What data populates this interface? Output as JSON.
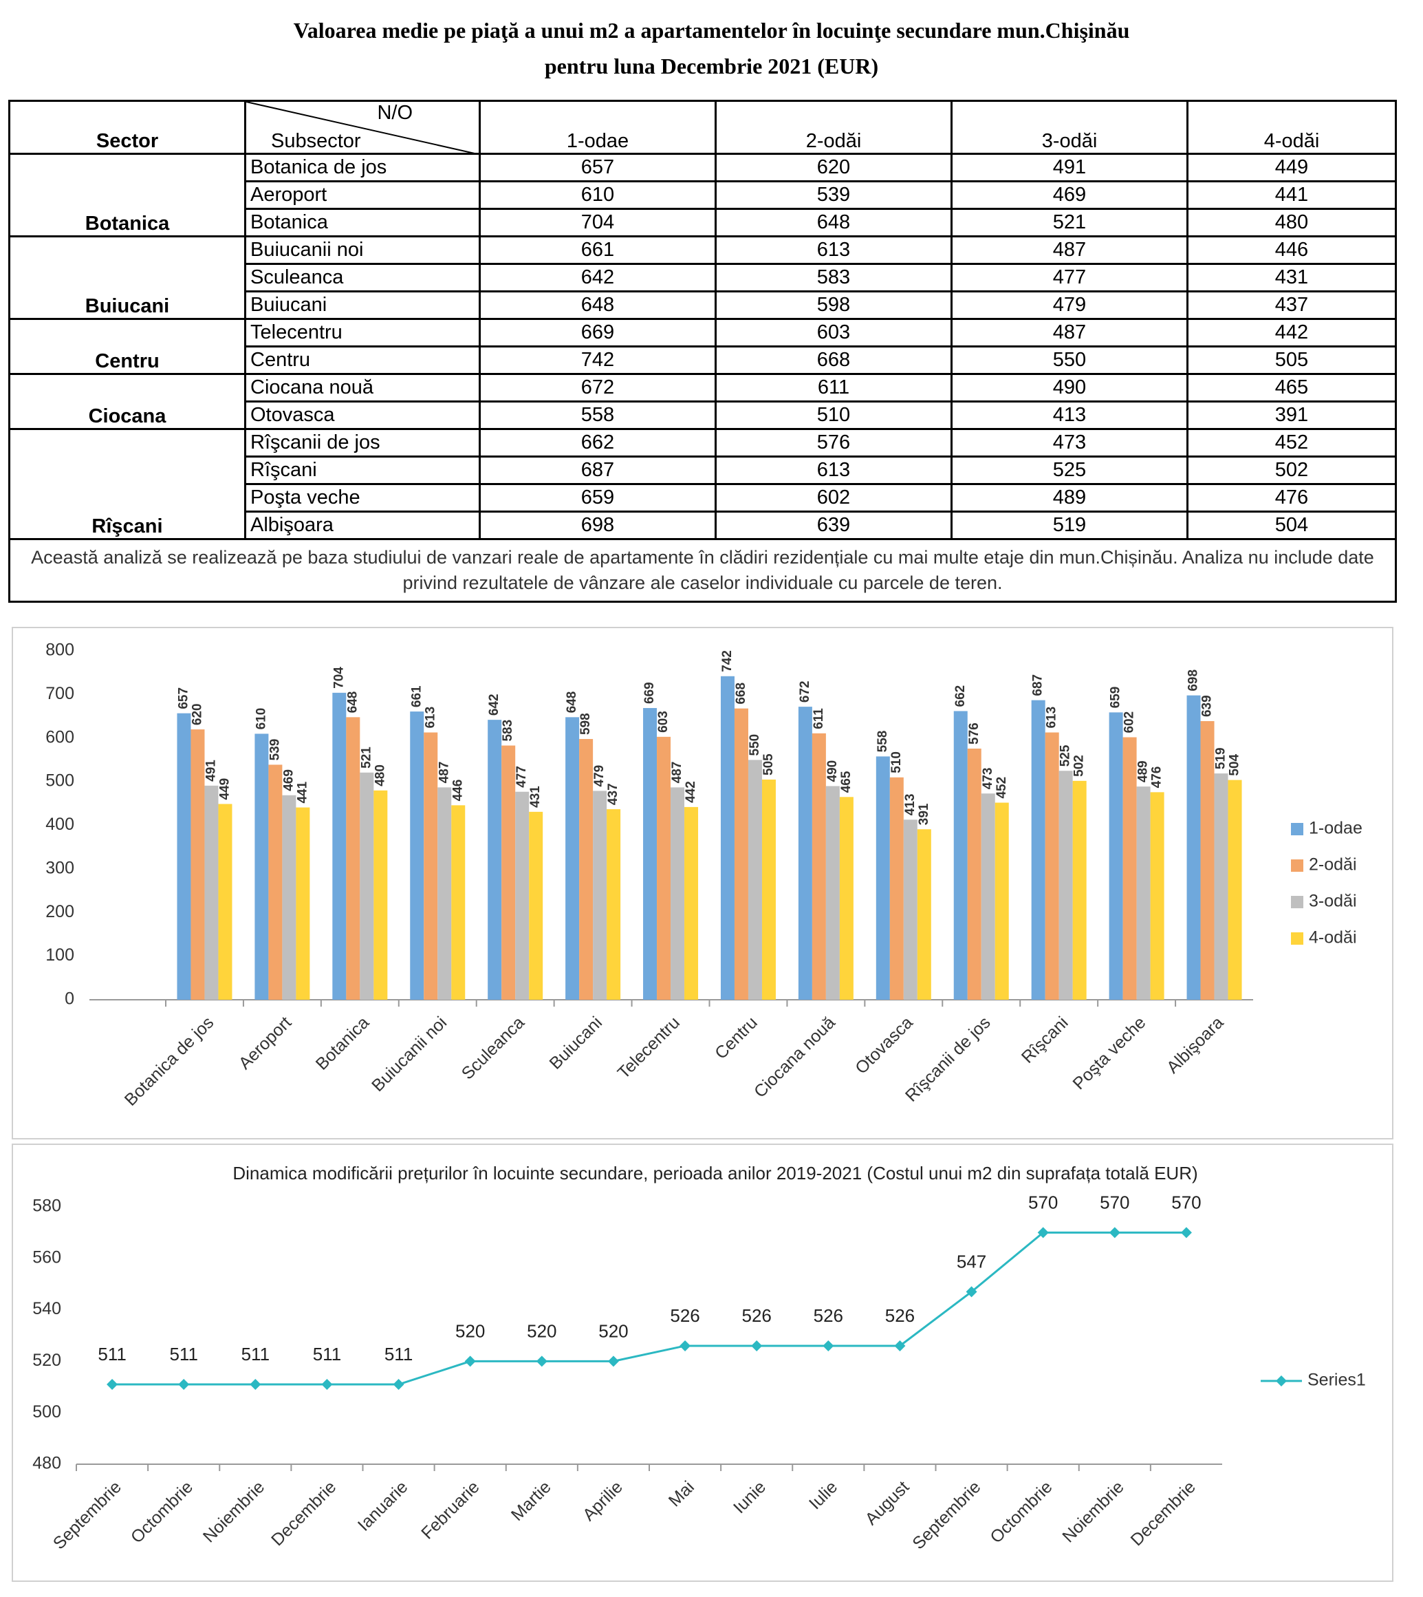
{
  "header": {
    "title_lines": [
      "Valoarea medie pe piaţă a unui m2 a apartamentelor în locuinţe secundare  mun.Chişinău",
      "pentru luna Decembrie 2021 (EUR)"
    ]
  },
  "table": {
    "header": {
      "sector": "Sector",
      "no": "N/O",
      "subsector": "Subsector",
      "columns": [
        "1-odae",
        "2-odăi",
        "3-odăi",
        "4-odăi"
      ]
    },
    "groups": [
      {
        "sector": "Botanica",
        "rows": [
          {
            "subsector": "Botanica de jos",
            "values": [
              657,
              620,
              491,
              449
            ]
          },
          {
            "subsector": "Aeroport",
            "values": [
              610,
              539,
              469,
              441
            ]
          },
          {
            "subsector": "Botanica",
            "values": [
              704,
              648,
              521,
              480
            ]
          }
        ]
      },
      {
        "sector": "Buiucani",
        "rows": [
          {
            "subsector": "Buiucanii noi",
            "values": [
              661,
              613,
              487,
              446
            ]
          },
          {
            "subsector": "Sculeanca",
            "values": [
              642,
              583,
              477,
              431
            ]
          },
          {
            "subsector": "Buiucani",
            "values": [
              648,
              598,
              479,
              437
            ]
          }
        ]
      },
      {
        "sector": "Centru",
        "rows": [
          {
            "subsector": "Telecentru",
            "values": [
              669,
              603,
              487,
              442
            ]
          },
          {
            "subsector": "Centru",
            "values": [
              742,
              668,
              550,
              505
            ]
          }
        ]
      },
      {
        "sector": "Ciocana",
        "rows": [
          {
            "subsector": "Ciocana nouă",
            "values": [
              672,
              611,
              490,
              465
            ]
          },
          {
            "subsector": "Otovasca",
            "values": [
              558,
              510,
              413,
              391
            ]
          }
        ]
      },
      {
        "sector": "Rîşcani",
        "rows": [
          {
            "subsector": "Rîşcanii de jos",
            "values": [
              662,
              576,
              473,
              452
            ]
          },
          {
            "subsector": "Rîşcani",
            "values": [
              687,
              613,
              525,
              502
            ]
          },
          {
            "subsector": "Poşta veche",
            "values": [
              659,
              602,
              489,
              476
            ]
          },
          {
            "subsector": "Albişoara",
            "values": [
              698,
              639,
              519,
              504
            ]
          }
        ]
      }
    ],
    "note": "Această analiză se realizează pe baza studiului de vanzari reale de apartamente în clădiri rezidențiale cu mai multe etaje din mun.Chișinău. Analiza nu include date privind rezultatele de vânzare ale caselor individuale cu parcele de teren."
  },
  "chart_data": [
    {
      "type": "bar",
      "categories": [
        "Botanica de jos",
        "Aeroport",
        "Botanica",
        "Buiucanii noi",
        "Sculeanca",
        "Buiucani",
        "Telecentru",
        "Centru",
        "Ciocana nouă",
        "Otovasca",
        "Rîşcanii de jos",
        "Rîşcani",
        "Poşta veche",
        "Albişoara"
      ],
      "series": [
        {
          "name": "1-odae",
          "color": "#6fa8dc",
          "values": [
            657,
            610,
            704,
            661,
            642,
            648,
            669,
            742,
            672,
            558,
            662,
            687,
            659,
            698
          ]
        },
        {
          "name": "2-odăi",
          "color": "#f3a468",
          "values": [
            620,
            539,
            648,
            613,
            583,
            598,
            603,
            668,
            611,
            510,
            576,
            613,
            602,
            639
          ]
        },
        {
          "name": "3-odăi",
          "color": "#bfbfbf",
          "values": [
            491,
            469,
            521,
            487,
            477,
            479,
            487,
            550,
            490,
            413,
            473,
            525,
            489,
            519
          ]
        },
        {
          "name": "4-odăi",
          "color": "#ffd43b",
          "values": [
            449,
            441,
            480,
            446,
            431,
            437,
            442,
            505,
            465,
            391,
            452,
            502,
            476,
            504
          ]
        }
      ],
      "ylim": [
        0,
        800
      ],
      "yticks": [
        0,
        100,
        200,
        300,
        400,
        500,
        600,
        700,
        800
      ],
      "grid": false,
      "legend": "right"
    },
    {
      "type": "line",
      "title": "Dinamica modificării prețurilor în locuinte secundare, perioada anilor 2019-2021 (Costul unui m2 din suprafața totală EUR)",
      "categories": [
        "Septembrie",
        "Octombrie",
        "Noiembrie",
        "Decembrie",
        "Ianuarie",
        "Februarie",
        "Martie",
        "Aprilie",
        "Mai",
        "Iunie",
        "Iulie",
        "August",
        "Septembrie",
        "Octombrie",
        "Noiembrie",
        "Decembrie"
      ],
      "series": [
        {
          "name": "Series1",
          "color": "#2bb8c2",
          "values": [
            511,
            511,
            511,
            511,
            511,
            520,
            520,
            520,
            526,
            526,
            526,
            526,
            547,
            570,
            570,
            570
          ]
        }
      ],
      "ylim": [
        480,
        580
      ],
      "yticks": [
        480,
        500,
        520,
        540,
        560,
        580
      ],
      "grid": false,
      "legend": "right"
    }
  ]
}
